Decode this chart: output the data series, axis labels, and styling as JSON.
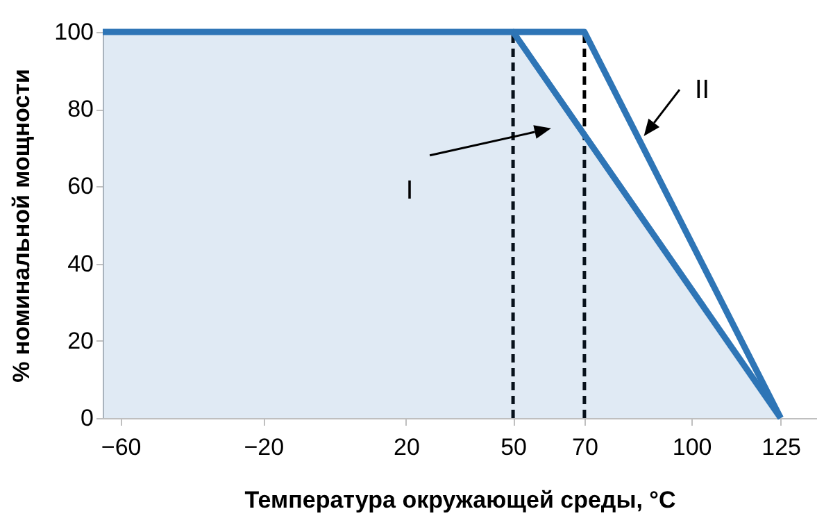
{
  "chart_data": {
    "type": "line",
    "xlabel": "Температура окружающей среды, °C",
    "ylabel": "% номинальной мощности",
    "xlim": [
      -65,
      135
    ],
    "xticks": [
      -60,
      -20,
      20,
      50,
      70,
      100,
      125
    ],
    "ylim": [
      0,
      100
    ],
    "yticks": [
      0,
      20,
      40,
      60,
      80,
      100
    ],
    "grid": false,
    "legend": false,
    "marker": "none",
    "line_style": "solid",
    "series": [
      {
        "type": "area",
        "color": "#2e75b6",
        "x": [
          -65,
          50,
          125
        ],
        "values": [
          100,
          100,
          0
        ]
      },
      {
        "color": "#2e75b6",
        "x": [
          50,
          70,
          125
        ],
        "values": [
          100,
          100,
          0
        ]
      }
    ],
    "ref_lines": [
      {
        "axis": "x",
        "value": 50,
        "color": "#000000",
        "line_style": "dashed"
      },
      {
        "axis": "x",
        "value": 70,
        "color": "#000000",
        "line_style": "dashed"
      }
    ],
    "annotations": [
      "I",
      "II"
    ]
  }
}
